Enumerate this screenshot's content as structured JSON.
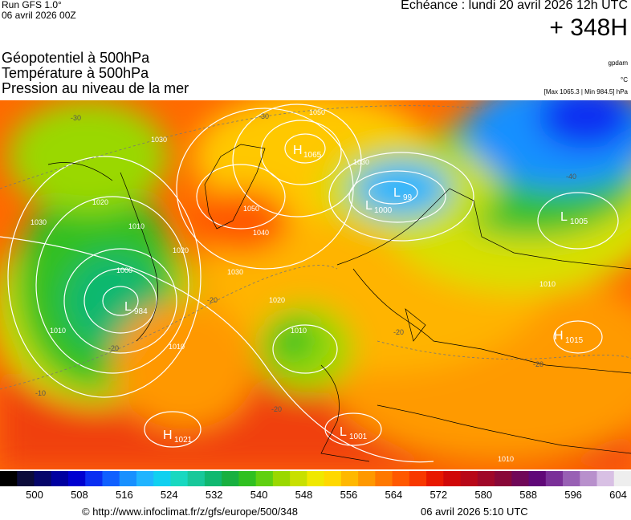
{
  "header": {
    "run_line": "Run GFS 1.0°",
    "run_date": "06 avril 2026 00Z",
    "echeance": "Echéance : lundi 20 avril 2026 12h UTC",
    "horizon": "+ 348H",
    "layers": [
      "Géopotentiel à 500hPa",
      "Température à 500hPa",
      "Pression au niveau de la mer"
    ],
    "credit": "gpdam",
    "unit": "°C",
    "maxmin": "[Max 1065.3 | Min 984.5] hPa"
  },
  "pressure_centers": [
    {
      "type": "H",
      "value": "1065"
    },
    {
      "type": "L",
      "value": "1000"
    },
    {
      "type": "L",
      "value": "99"
    },
    {
      "type": "L",
      "value": "1005"
    },
    {
      "type": "L",
      "value": "984"
    },
    {
      "type": "H",
      "value": "1015"
    },
    {
      "type": "H",
      "value": "1021"
    },
    {
      "type": "L",
      "value": "1001"
    }
  ],
  "isobar_labels": [
    "1050",
    "1030",
    "1020",
    "1010",
    "1000",
    "1050",
    "1040",
    "1030",
    "1020",
    "1030",
    "1010",
    "1010",
    "1020",
    "1030",
    "1010",
    "1010",
    "1010"
  ],
  "temperature_labels": [
    "-30",
    "-30",
    "-20",
    "-20",
    "-20",
    "-20",
    "-20",
    "-10",
    "-40"
  ],
  "scale": {
    "labels": [
      "500",
      "508",
      "516",
      "524",
      "532",
      "540",
      "548",
      "556",
      "564",
      "572",
      "580",
      "588",
      "596",
      "604"
    ],
    "colors": [
      "#000000",
      "#0b0b3a",
      "#06066a",
      "#0000a0",
      "#0000d0",
      "#0a2ef2",
      "#1060ff",
      "#1890ff",
      "#20b4ff",
      "#10d0f0",
      "#18d8c0",
      "#18c89a",
      "#10b870",
      "#18b040",
      "#30c020",
      "#60d010",
      "#9ad800",
      "#c8e000",
      "#f0e800",
      "#ffd800",
      "#ffb800",
      "#ff9800",
      "#ff7800",
      "#ff5800",
      "#f83800",
      "#e81800",
      "#d00808",
      "#b80818",
      "#a00828",
      "#880838",
      "#700858",
      "#600878",
      "#7a3098",
      "#9860b4",
      "#b890cc",
      "#d8c0e4",
      "#eeeeee"
    ]
  },
  "footer": {
    "url": "© http://www.infoclimat.fr/z/gfs/europe/500/348",
    "date": "06 avril 2026  5:10 UTC"
  }
}
